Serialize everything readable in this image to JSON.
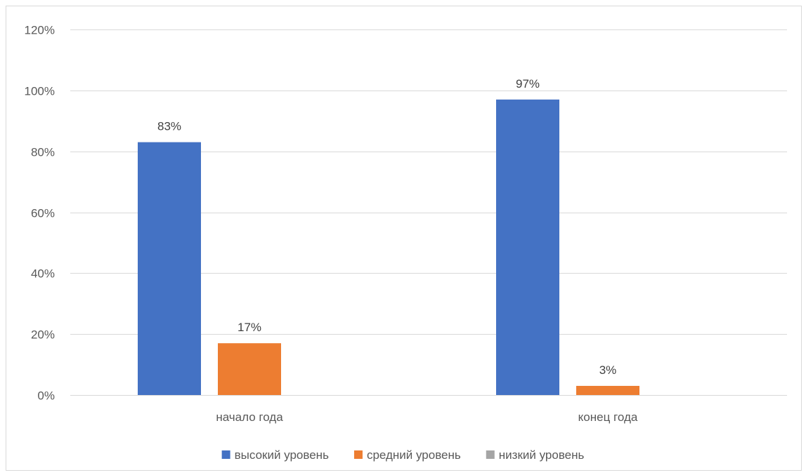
{
  "chart_data": {
    "type": "bar",
    "title": "",
    "xlabel": "",
    "ylabel": "",
    "categories": [
      "начало года",
      "конец года"
    ],
    "series": [
      {
        "name": "высокий уровень",
        "values": [
          83,
          97
        ],
        "color": "#4472C4",
        "labels": [
          "83%",
          "97%"
        ]
      },
      {
        "name": "средний уровень",
        "values": [
          17,
          3
        ],
        "color": "#ED7D31",
        "labels": [
          "17%",
          "3%"
        ]
      },
      {
        "name": "низкий уровень",
        "values": [
          0,
          0
        ],
        "color": "#A5A5A5",
        "labels": [
          "",
          ""
        ]
      }
    ],
    "ylim": [
      0,
      120
    ],
    "yticks": [
      0,
      20,
      40,
      60,
      80,
      100,
      120
    ],
    "ytick_labels": [
      "0%",
      "20%",
      "40%",
      "60%",
      "80%",
      "100%",
      "120%"
    ],
    "grid": true,
    "legend_position": "bottom"
  }
}
